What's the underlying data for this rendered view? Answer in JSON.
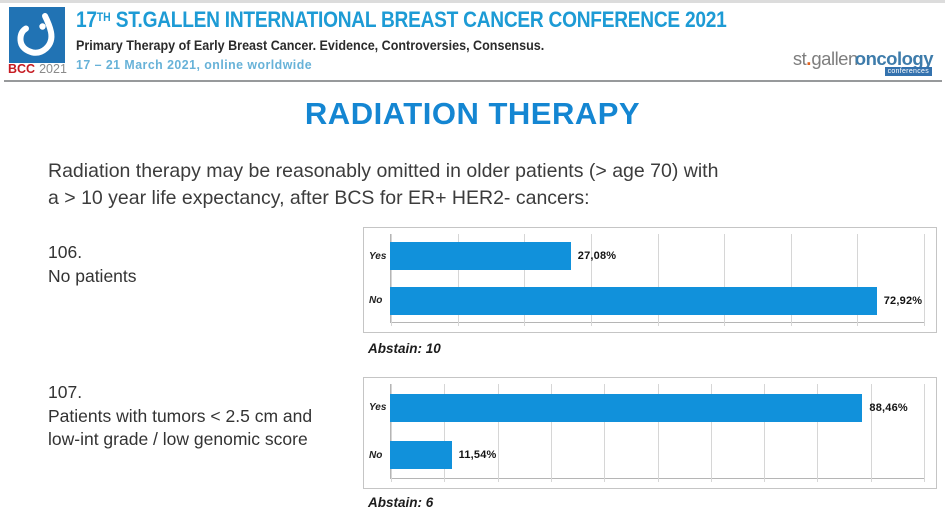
{
  "header": {
    "logo": {
      "icon": "bcc-drop-icon",
      "bcc": "BCC",
      "year": "2021",
      "square_color": "#2173B4"
    },
    "title_num": "17",
    "title_sup": "TH",
    "title_rest": " ST.GALLEN INTERNATIONAL BREAST CANCER CONFERENCE 2021",
    "subtitle": "Primary Therapy of Early Breast Cancer. Evidence, Controversies, Consensus.",
    "date_line": "17 – 21 March 2021, online worldwide",
    "brand": {
      "st": "st",
      "dot": ".",
      "gallen": "gallen",
      "oncology": "oncology",
      "badge": "conferences"
    }
  },
  "slide": {
    "title": "RADIATION THERAPY",
    "question_line1": "Radiation therapy may be reasonably omitted in older patients (> age 70)  with",
    "question_line2": "a > 10 year life expectancy, after BCS for ER+ HER2- cancers:"
  },
  "questions": [
    {
      "number": "106.",
      "line1": "No patients",
      "line2": "",
      "abstain": "Abstain: 10"
    },
    {
      "number": "107.",
      "line1": "Patients with tumors < 2.5 cm and",
      "line2": "low-int grade / low genomic score",
      "abstain": "Abstain: 6"
    }
  ],
  "chart_data": [
    {
      "type": "bar",
      "orientation": "horizontal",
      "title": "Vote 106 – No patients",
      "categories": [
        "Yes",
        "No"
      ],
      "values": [
        27.08,
        72.92
      ],
      "value_labels": [
        "27,08%",
        "72,92%"
      ],
      "abstain": 10,
      "axis_max": 80,
      "gridline_step": 10,
      "grid": true,
      "legend": false,
      "bar_color": "#1191DB"
    },
    {
      "type": "bar",
      "orientation": "horizontal",
      "title": "Vote 107 – Patients with tumors < 2.5 cm and low-int grade / low genomic score",
      "categories": [
        "Yes",
        "No"
      ],
      "values": [
        88.46,
        11.54
      ],
      "value_labels": [
        "88,46%",
        "11,54%"
      ],
      "abstain": 6,
      "axis_max": 100,
      "gridline_step": 10,
      "grid": true,
      "legend": false,
      "bar_color": "#1191DB"
    }
  ],
  "colors": {
    "header_title_blue": "#1D9BD5",
    "date_blue": "#67B2D8",
    "slide_title_blue": "#1486D2",
    "bar_blue": "#1191DB",
    "bcc_red": "#C61B22",
    "brand_gray": "#7E7E7E",
    "brand_orange": "#E0621F",
    "brand_blue": "#3E7CAB",
    "text_dark": "#3C3C3C"
  }
}
